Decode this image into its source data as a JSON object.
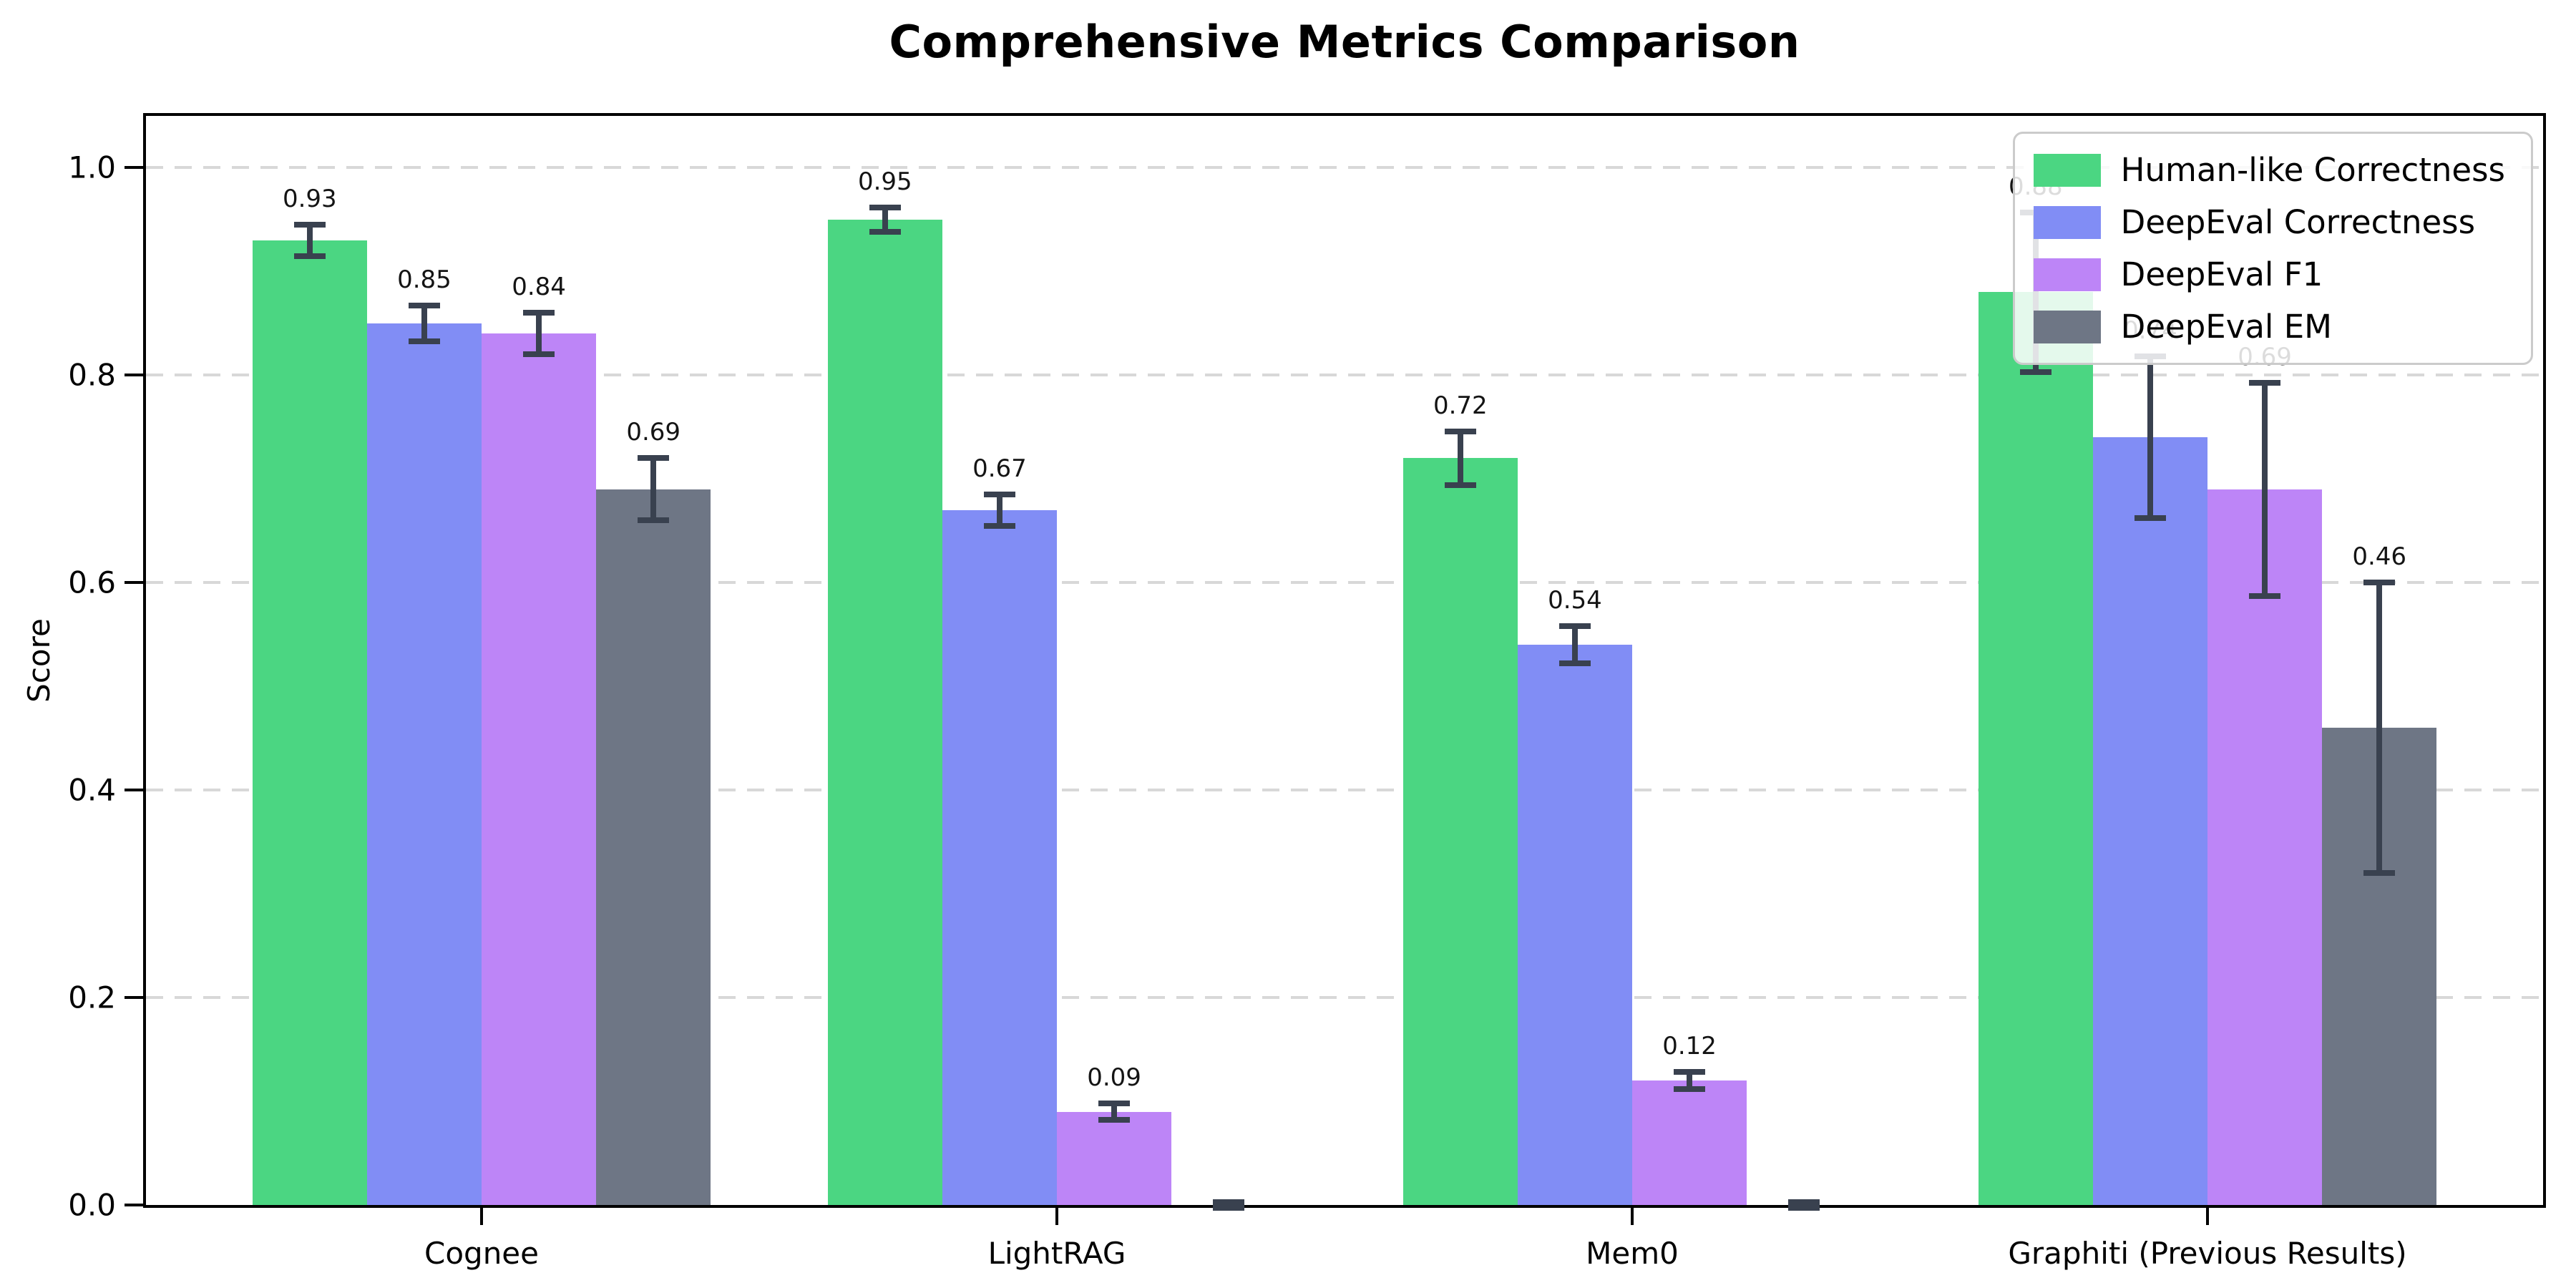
{
  "title": "Comprehensive Metrics Comparison",
  "chart_data": {
    "type": "bar",
    "title": "Comprehensive Metrics Comparison",
    "xlabel": "",
    "ylabel": "Score",
    "ylim": [
      0,
      1.05
    ],
    "yticks": [
      "0.0",
      "0.2",
      "0.4",
      "0.6",
      "0.8",
      "1.0"
    ],
    "grid": "horizontal-dashed",
    "grid_color": "#d8d8d8",
    "legend_position": "upper-right",
    "error_bar_color": "#39414f",
    "categories": [
      "Cognee",
      "LightRAG",
      "Mem0",
      "Graphiti (Previous Results)"
    ],
    "series": [
      {
        "name": "Human-like Correctness",
        "color": "#4bd682",
        "values": [
          0.93,
          0.95,
          0.72,
          0.88
        ],
        "errors": [
          0.015,
          0.012,
          0.026,
          0.077
        ],
        "labels": [
          "0.93",
          "0.95",
          "0.72",
          "0.88"
        ]
      },
      {
        "name": "DeepEval Correctness",
        "color": "#818df5",
        "values": [
          0.85,
          0.67,
          0.54,
          0.74
        ],
        "errors": [
          0.017,
          0.015,
          0.018,
          0.078
        ],
        "labels": [
          "0.85",
          "0.67",
          "0.54",
          "0.74"
        ]
      },
      {
        "name": "DeepEval F1",
        "color": "#bd85f7",
        "values": [
          0.84,
          0.09,
          0.12,
          0.69
        ],
        "errors": [
          0.02,
          0.008,
          0.008,
          0.103
        ],
        "labels": [
          "0.84",
          "0.09",
          "0.12",
          "0.69"
        ]
      },
      {
        "name": "DeepEval EM",
        "color": "#6e7685",
        "values": [
          0.69,
          0.0,
          0.0,
          0.46
        ],
        "errors": [
          0.03,
          0.003,
          0.003,
          0.14
        ],
        "labels": [
          "0.69",
          "",
          "",
          "0.46"
        ]
      }
    ],
    "layout": {
      "group_centers_pct": [
        14,
        38,
        62,
        86
      ],
      "bar_width_pct": 4.78
    }
  }
}
